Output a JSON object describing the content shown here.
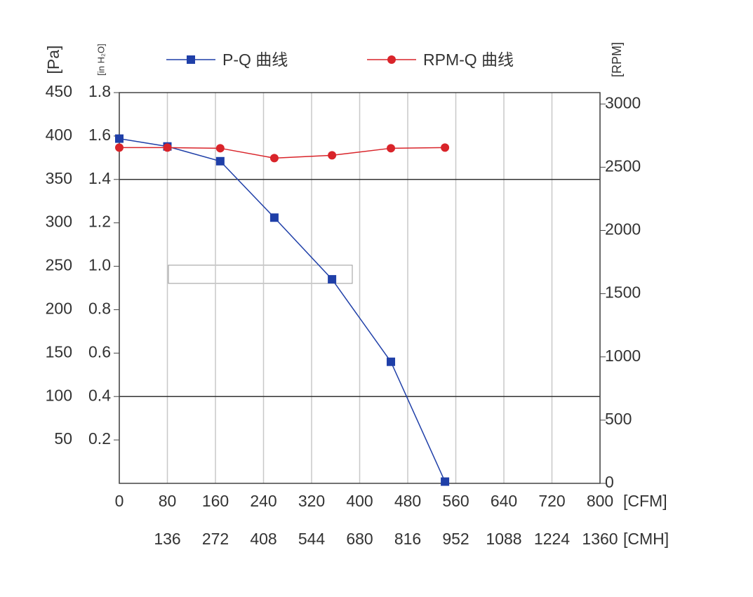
{
  "chart_data": {
    "type": "line",
    "x": [
      0,
      80,
      168,
      258,
      354,
      452,
      542
    ],
    "series": [
      {
        "name": "P-Q 曲线",
        "color": "#1f3fa8",
        "marker": "square",
        "values": [
          397,
          388,
          371,
          306,
          235,
          140,
          2
        ]
      },
      {
        "name": "RPM-Q 曲线",
        "color": "#d9242a",
        "marker": "circle",
        "axis": "y2",
        "values": [
          2655,
          2655,
          2650,
          2572,
          2594,
          2650,
          2655
        ]
      }
    ],
    "xlim": [
      0,
      800
    ],
    "xticks": [
      0,
      80,
      160,
      240,
      320,
      400,
      480,
      560,
      640,
      720,
      800
    ],
    "xlabel": "[CFM]",
    "x2lim": [
      0,
      1360
    ],
    "x2ticks": [
      136,
      272,
      408,
      544,
      680,
      816,
      952,
      1088,
      1224,
      1360
    ],
    "x2label": "[CMH]",
    "ylim": [
      0,
      450
    ],
    "yticks": [
      50,
      100,
      150,
      200,
      250,
      300,
      350,
      400,
      450
    ],
    "ylabel": "[Pa]",
    "y_alt_lim": [
      0,
      1.8
    ],
    "y_alt_ticks": [
      0.2,
      0.4,
      0.6,
      0.8,
      {
        "value": 1,
        "label": "1.0"
      },
      1.2,
      1.4,
      1.6,
      1.8
    ],
    "y_alt_label": "[in H₂O]",
    "y2lim": [
      0,
      3090
    ],
    "y2ticks": [
      0,
      500,
      1000,
      1500,
      2000,
      2500,
      3000
    ],
    "y2label": "[RPM]",
    "reference_lines": [
      350,
      100
    ],
    "grid": true
  }
}
